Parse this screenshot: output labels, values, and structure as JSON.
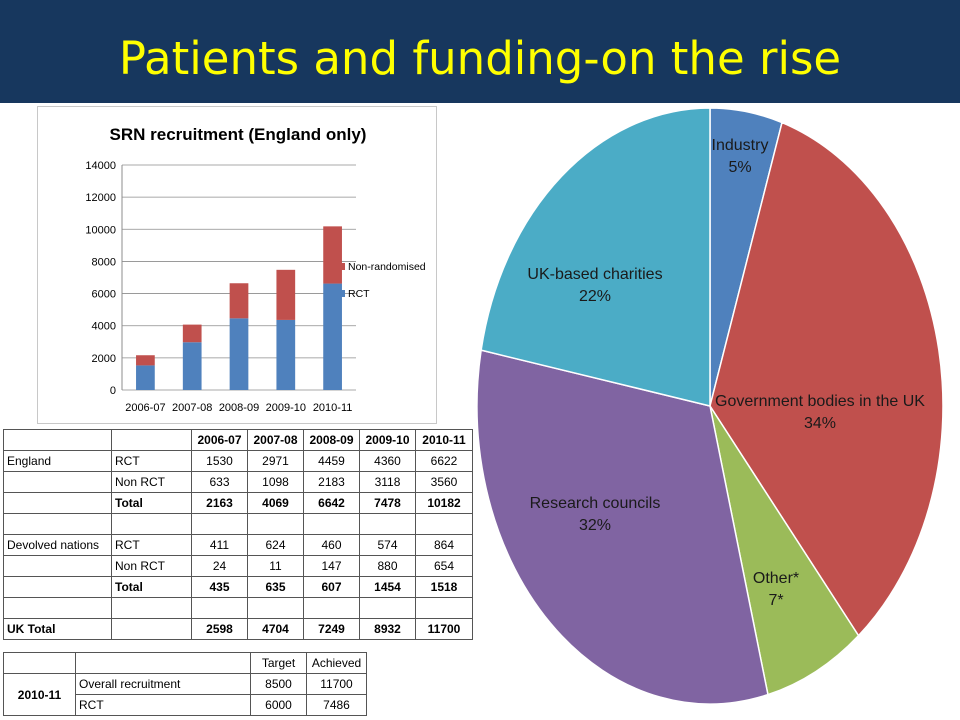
{
  "slide": {
    "title": "Patients and funding-on the rise"
  },
  "chart_data": [
    {
      "type": "bar",
      "stacked": true,
      "title": "SRN recruitment (England only)",
      "categories": [
        "2006-07",
        "2007-08",
        "2008-09",
        "2009-10",
        "2010-11"
      ],
      "series": [
        {
          "name": "RCT",
          "values": [
            1530,
            2971,
            4459,
            4360,
            6622
          ],
          "color": "#4f81bd"
        },
        {
          "name": "Non-randomised",
          "values": [
            633,
            1098,
            2183,
            3118,
            3560
          ],
          "color": "#c0504d"
        }
      ],
      "ylim": [
        0,
        14000
      ],
      "yticks": [
        "0",
        "2000",
        "4000",
        "6000",
        "8000",
        "10000",
        "12000",
        "14000"
      ],
      "grid": true,
      "legend": "right"
    },
    {
      "type": "pie",
      "slices": [
        {
          "label": "Industry",
          "value_label": "5%",
          "value": 5,
          "color": "#4f81bd"
        },
        {
          "label": "Government bodies in the UK",
          "value_label": "34%",
          "value": 34,
          "color": "#c0504d"
        },
        {
          "label": "Other*",
          "value_label": "7*",
          "value": 7,
          "color": "#9bbb59"
        },
        {
          "label": "Research councils",
          "value_label": "32%",
          "value": 32,
          "color": "#8064a2"
        },
        {
          "label": "UK-based charities",
          "value_label": "22%",
          "value": 22,
          "color": "#4bacc6"
        }
      ]
    }
  ],
  "recruitment_table": {
    "headers": [
      "",
      "",
      "2006-07",
      "2007-08",
      "2008-09",
      "2009-10",
      "2010-11"
    ],
    "rows": [
      {
        "bold": false,
        "cells": [
          "England",
          "RCT",
          "1530",
          "2971",
          "4459",
          "4360",
          "6622"
        ]
      },
      {
        "bold": false,
        "cells": [
          "",
          "Non RCT",
          "633",
          "1098",
          "2183",
          "3118",
          "3560"
        ]
      },
      {
        "bold": true,
        "cells": [
          "",
          "Total",
          "2163",
          "4069",
          "6642",
          "7478",
          "10182"
        ]
      },
      {
        "bold": false,
        "cells": [
          "",
          "",
          "",
          "",
          "",
          "",
          ""
        ]
      },
      {
        "bold": false,
        "cells": [
          "Devolved nations",
          "RCT",
          "411",
          "624",
          "460",
          "574",
          "864"
        ]
      },
      {
        "bold": false,
        "cells": [
          "",
          "Non RCT",
          "24",
          "11",
          "147",
          "880",
          "654"
        ]
      },
      {
        "bold": true,
        "cells": [
          "",
          "Total",
          "435",
          "635",
          "607",
          "1454",
          "1518"
        ]
      },
      {
        "bold": false,
        "cells": [
          "",
          "",
          "",
          "",
          "",
          "",
          ""
        ]
      },
      {
        "bold": true,
        "cells": [
          "UK Total",
          "",
          "2598",
          "4704",
          "7249",
          "8932",
          "11700"
        ]
      }
    ]
  },
  "target_table": {
    "headers": [
      "",
      "",
      "Target",
      "Achieved"
    ],
    "year": "2010-11",
    "rows": [
      {
        "label": "Overall recruitment",
        "target": "8500",
        "achieved": "11700"
      },
      {
        "label": "RCT",
        "target": "6000",
        "achieved": "7486"
      }
    ]
  }
}
